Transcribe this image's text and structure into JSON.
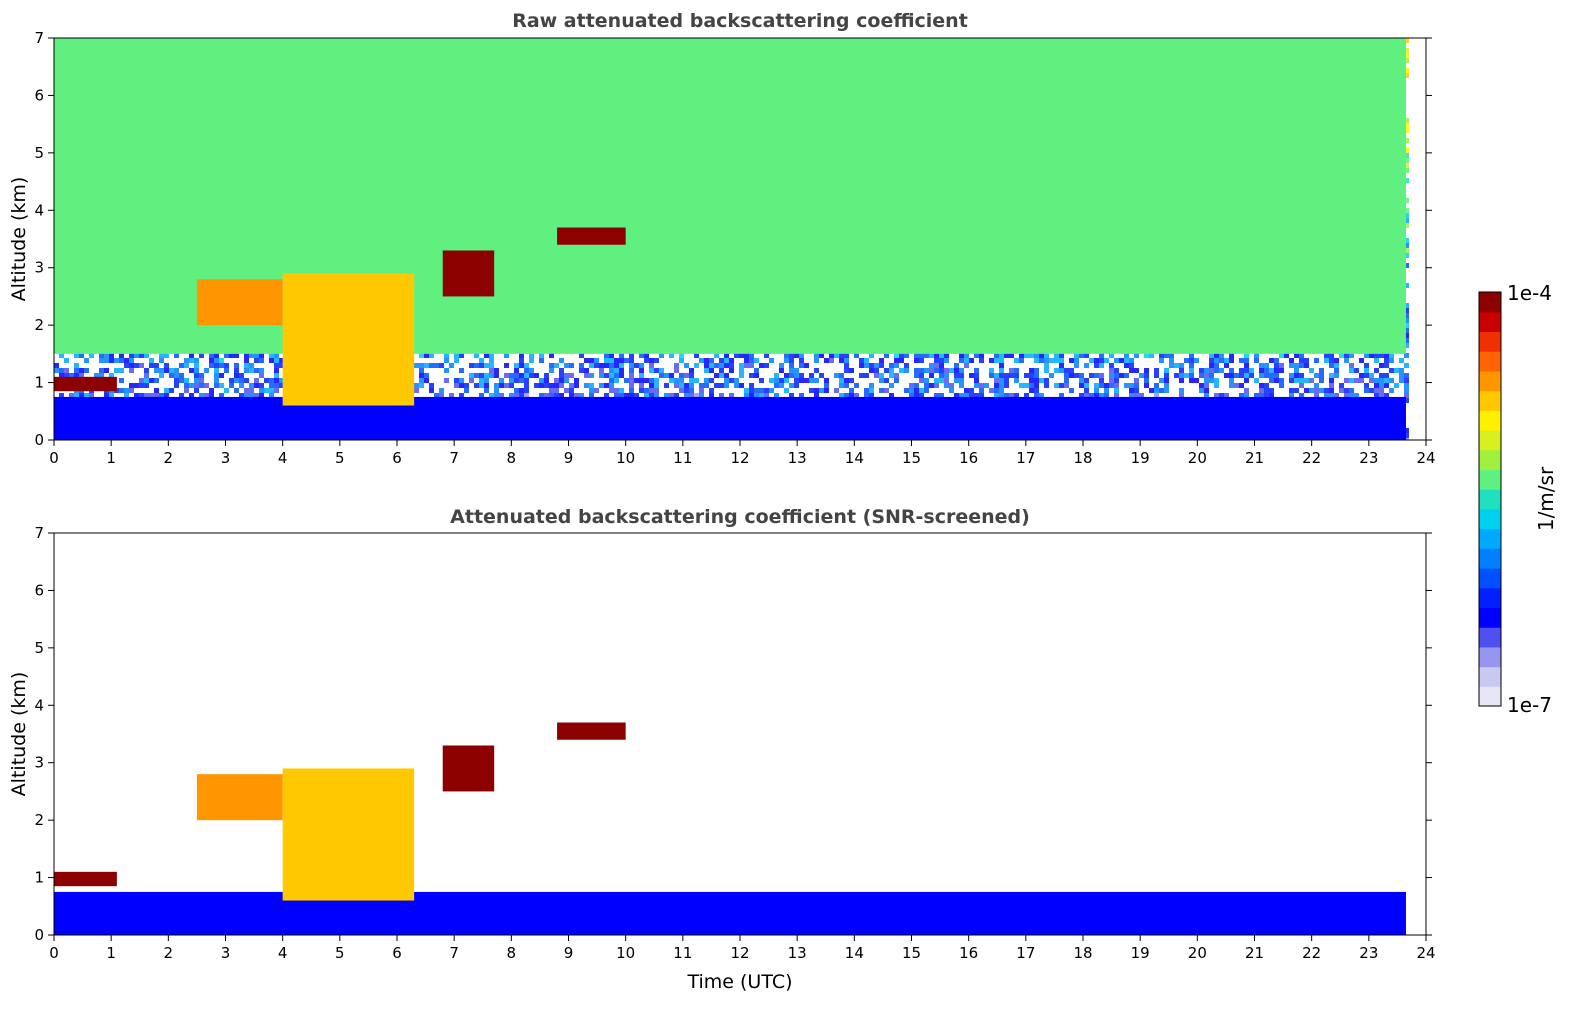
{
  "chart_data": [
    {
      "type": "heatmap",
      "title": "Raw attenuated backscattering coefficient",
      "xlabel": "",
      "ylabel": "Altitude (km)",
      "xlim": [
        0,
        24
      ],
      "ylim": [
        0,
        7
      ],
      "x_ticks": [
        "0",
        "1",
        "2",
        "3",
        "4",
        "5",
        "6",
        "7",
        "8",
        "9",
        "10",
        "11",
        "12",
        "13",
        "14",
        "15",
        "16",
        "17",
        "18",
        "19",
        "20",
        "21",
        "22",
        "23",
        "24"
      ],
      "y_ticks": [
        "0",
        "1",
        "2",
        "3",
        "4",
        "5",
        "6",
        "7"
      ],
      "data_end_hour": 23.65,
      "features": [
        {
          "name": "noisy background",
          "x": [
            0,
            23.65
          ],
          "y": [
            1.5,
            7
          ],
          "level": 0.55
        },
        {
          "name": "boundary layer",
          "x": [
            0,
            23.65
          ],
          "y": [
            0,
            0.75
          ],
          "level": 0.22
        },
        {
          "name": "low cloud",
          "x": [
            0,
            1.1
          ],
          "y": [
            0.85,
            1.1
          ],
          "level": 0.97
        },
        {
          "name": "mid-level cloud",
          "x": [
            2.5,
            4.0
          ],
          "y": [
            2.0,
            2.8
          ],
          "level": 0.8
        },
        {
          "name": "descending layer",
          "x": [
            4.0,
            6.3
          ],
          "y": [
            0.6,
            2.9
          ],
          "level": 0.75
        },
        {
          "name": "cloud 7.5h",
          "x": [
            6.8,
            7.7
          ],
          "y": [
            2.5,
            3.3
          ],
          "level": 0.97
        },
        {
          "name": "cloud 9.5h",
          "x": [
            8.8,
            10.0
          ],
          "y": [
            3.4,
            3.7
          ],
          "level": 0.97
        }
      ]
    },
    {
      "type": "heatmap",
      "title": "Attenuated backscattering coefficient (SNR-screened)",
      "xlabel": "Time (UTC)",
      "ylabel": "Altitude (km)",
      "xlim": [
        0,
        24
      ],
      "ylim": [
        0,
        7
      ],
      "x_ticks": [
        "0",
        "1",
        "2",
        "3",
        "4",
        "5",
        "6",
        "7",
        "8",
        "9",
        "10",
        "11",
        "12",
        "13",
        "14",
        "15",
        "16",
        "17",
        "18",
        "19",
        "20",
        "21",
        "22",
        "23",
        "24"
      ],
      "y_ticks": [
        "0",
        "1",
        "2",
        "3",
        "4",
        "5",
        "6",
        "7"
      ],
      "data_end_hour": 23.65,
      "features": [
        {
          "name": "boundary layer",
          "x": [
            0,
            23.65
          ],
          "y": [
            0,
            0.75
          ],
          "level": 0.22
        },
        {
          "name": "low cloud",
          "x": [
            0,
            1.1
          ],
          "y": [
            0.85,
            1.1
          ],
          "level": 0.97
        },
        {
          "name": "mid-level cloud",
          "x": [
            2.5,
            4.0
          ],
          "y": [
            2.0,
            2.8
          ],
          "level": 0.8
        },
        {
          "name": "descending layer",
          "x": [
            4.0,
            6.3
          ],
          "y": [
            0.6,
            2.9
          ],
          "level": 0.75
        },
        {
          "name": "cloud 7.5h",
          "x": [
            6.8,
            7.7
          ],
          "y": [
            2.5,
            3.3
          ],
          "level": 0.97
        },
        {
          "name": "cloud 9.5h",
          "x": [
            8.8,
            10.0
          ],
          "y": [
            3.4,
            3.7
          ],
          "level": 0.97
        }
      ]
    }
  ],
  "colorbar": {
    "max_label": "1e-4",
    "min_label": "1e-7",
    "units": "1/m/sr",
    "colors": [
      "#e6e6f5",
      "#c8c8f0",
      "#9696f0",
      "#5050f0",
      "#0000ff",
      "#0020ff",
      "#0050ff",
      "#0080ff",
      "#00a8ff",
      "#00d0f0",
      "#20e0c0",
      "#60f080",
      "#a0f040",
      "#d8f020",
      "#fff000",
      "#ffc800",
      "#ff9600",
      "#ff6400",
      "#f03000",
      "#c80000",
      "#8c0000"
    ]
  }
}
